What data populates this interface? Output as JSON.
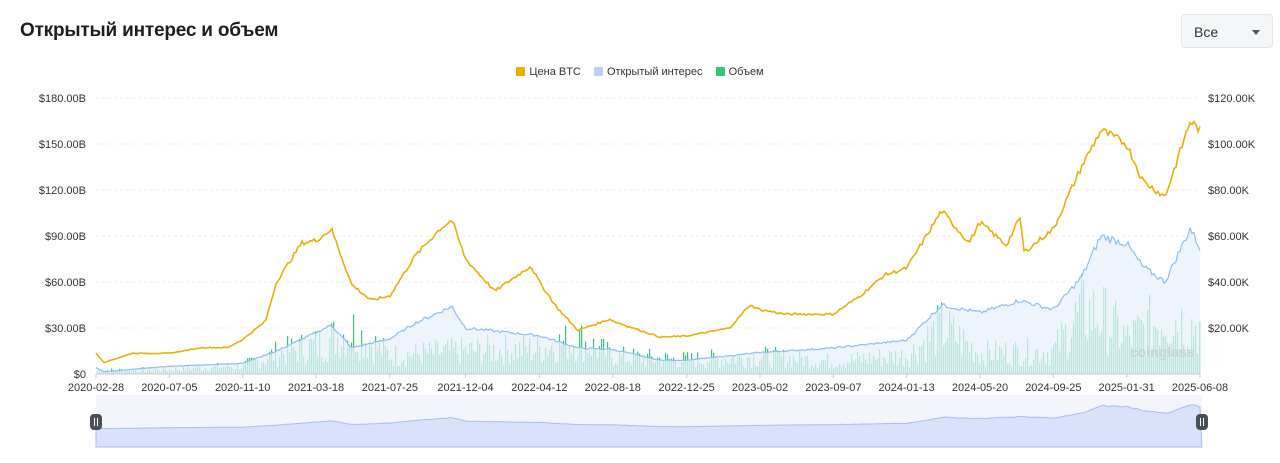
{
  "header": {
    "title": "Открытый интерес и объем"
  },
  "range_select": {
    "value": "Все"
  },
  "watermark": "coinglass",
  "chart_data": {
    "type": "line",
    "colors": {
      "price": "#e8b10a",
      "open_interest": "#8fbfeb",
      "volume": "#37c37a",
      "oi_fill": "#e7f0fb",
      "navigator": "#d9e1fb"
    },
    "legend": [
      {
        "name": "Цена BTC",
        "color": "#e8b10a"
      },
      {
        "name": "Открытый интерес",
        "color": "#b9d2f2"
      },
      {
        "name": "Объем",
        "color": "#37c37a"
      }
    ],
    "x_tick_labels": [
      "2020-02-28",
      "2020-07-05",
      "2020-11-10",
      "2021-03-18",
      "2021-07-25",
      "2021-12-04",
      "2022-04-12",
      "2022-08-18",
      "2022-12-25",
      "2023-05-02",
      "2023-09-07",
      "2024-01-13",
      "2024-05-20",
      "2024-09-25",
      "2025-01-31",
      "2025-06-08"
    ],
    "left_axis": {
      "ticks": [
        "$0",
        "$30.00B",
        "$60.00B",
        "$90.00B",
        "$120.00B",
        "$150.00B",
        "$180.00B"
      ],
      "range": [
        0,
        180
      ]
    },
    "right_axis": {
      "ticks": [
        "$20.00K",
        "$40.00K",
        "$60.00K",
        "$80.00K",
        "$100.00K",
        "$120.00K"
      ],
      "range": [
        0,
        120
      ]
    },
    "series": [
      {
        "name": "Цена BTC",
        "unit": "USD thousands (right axis)",
        "x": [
          "2020-02-28",
          "2020-03-13",
          "2020-05-01",
          "2020-07-05",
          "2020-09-01",
          "2020-10-15",
          "2020-11-10",
          "2020-12-20",
          "2021-01-08",
          "2021-02-21",
          "2021-03-18",
          "2021-04-14",
          "2021-05-19",
          "2021-06-22",
          "2021-07-25",
          "2021-09-06",
          "2021-10-20",
          "2021-11-10",
          "2021-12-04",
          "2022-01-24",
          "2022-03-28",
          "2022-04-12",
          "2022-05-12",
          "2022-06-18",
          "2022-08-15",
          "2022-08-18",
          "2022-11-09",
          "2022-12-25",
          "2023-03-10",
          "2023-04-14",
          "2023-05-02",
          "2023-06-15",
          "2023-08-17",
          "2023-09-07",
          "2023-10-24",
          "2023-12-05",
          "2024-01-13",
          "2024-03-14",
          "2024-05-01",
          "2024-05-20",
          "2024-07-05",
          "2024-07-29",
          "2024-08-05",
          "2024-09-25",
          "2024-11-13",
          "2024-12-17",
          "2025-01-31",
          "2025-02-28",
          "2025-04-08",
          "2025-05-22",
          "2025-06-08"
        ],
        "values": [
          9,
          5,
          9,
          9,
          11.5,
          11.5,
          15,
          23,
          40,
          57,
          58,
          63,
          39,
          32,
          34,
          51,
          63,
          67,
          50,
          36,
          47,
          40,
          29,
          19,
          24,
          23,
          16,
          16.5,
          20,
          30,
          28,
          26,
          26,
          26,
          34,
          43,
          46,
          71,
          57,
          66,
          56,
          68,
          53,
          63,
          90,
          106,
          100,
          84,
          77,
          110,
          106
        ]
      },
      {
        "name": "Открытый интерес",
        "unit": "USD billions (left axis)",
        "x": [
          "2020-02-28",
          "2020-03-13",
          "2020-07-05",
          "2020-11-10",
          "2021-01-08",
          "2021-03-18",
          "2021-04-14",
          "2021-05-19",
          "2021-07-25",
          "2021-09-06",
          "2021-11-10",
          "2021-12-04",
          "2022-04-12",
          "2022-06-18",
          "2022-08-18",
          "2022-11-09",
          "2022-12-25",
          "2023-05-02",
          "2023-09-07",
          "2024-01-13",
          "2024-03-14",
          "2024-05-20",
          "2024-07-29",
          "2024-09-25",
          "2024-11-13",
          "2024-12-17",
          "2025-01-31",
          "2025-02-28",
          "2025-04-08",
          "2025-05-22",
          "2025-06-08"
        ],
        "values": [
          4,
          1.5,
          5,
          7,
          15,
          27,
          32,
          17,
          23,
          33,
          44,
          30,
          25,
          17,
          16,
          9,
          9,
          14,
          17,
          22,
          45,
          40,
          48,
          42,
          63,
          90,
          85,
          70,
          60,
          95,
          82
        ]
      },
      {
        "name": "Объем",
        "unit": "USD billions (left axis)",
        "x": [
          "2020-02-28",
          "2020-07-05",
          "2020-11-10",
          "2021-01-08",
          "2021-03-18",
          "2021-05-19",
          "2021-07-25",
          "2021-12-04",
          "2022-04-12",
          "2022-06-18",
          "2022-08-18",
          "2022-12-25",
          "2023-05-02",
          "2023-09-07",
          "2024-01-13",
          "2024-03-14",
          "2024-05-20",
          "2024-09-25",
          "2024-11-13",
          "2024-12-17",
          "2025-01-31",
          "2025-04-08",
          "2025-06-08"
        ],
        "values": [
          3,
          4,
          7,
          18,
          25,
          38,
          16,
          20,
          22,
          30,
          15,
          12,
          15,
          11,
          16,
          40,
          18,
          20,
          54,
          50,
          30,
          50,
          40
        ]
      }
    ]
  }
}
